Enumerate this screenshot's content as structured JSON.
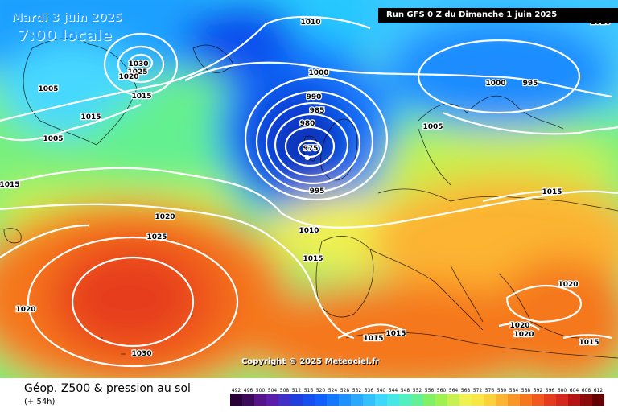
{
  "header": {
    "date": "Mardi 3 juin 2025",
    "time": "7:00 locale",
    "run": "Run GFS 0 Z du Dimanche 1 juin 2025"
  },
  "copyright": "Copyright © 2025 Meteociel.fr",
  "footer": {
    "title": "Géop. Z500 & pression au sol",
    "subtitle": "(+ 54h)"
  },
  "legend": {
    "ticks": [
      "492",
      "496",
      "500",
      "504",
      "508",
      "512",
      "516",
      "520",
      "524",
      "528",
      "532",
      "536",
      "540",
      "544",
      "548",
      "552",
      "556",
      "560",
      "564",
      "568",
      "572",
      "576",
      "580",
      "584",
      "588",
      "592",
      "596",
      "600",
      "604",
      "608",
      "612"
    ],
    "colors": [
      "#2a0038",
      "#3c0a5a",
      "#55148a",
      "#5a1eaa",
      "#4030c8",
      "#2040dd",
      "#1550ee",
      "#1060ff",
      "#1478ff",
      "#1e90ff",
      "#28a8ff",
      "#32c0ff",
      "#3cd8ff",
      "#46e8e6",
      "#50f0c0",
      "#64f096",
      "#82f064",
      "#a0f050",
      "#c8f050",
      "#f0f050",
      "#f8e646",
      "#fcd23c",
      "#fcb432",
      "#fa9628",
      "#f5781e",
      "#f05a1e",
      "#e63c1e",
      "#d2281e",
      "#b41414",
      "#8c0a0a",
      "#640000"
    ]
  },
  "isobar_labels": [
    {
      "text": "1010"
    },
    {
      "text": "1030"
    },
    {
      "text": "1025"
    },
    {
      "text": "1020"
    },
    {
      "text": "1005"
    },
    {
      "text": "1015"
    },
    {
      "text": "1015"
    },
    {
      "text": "1005"
    },
    {
      "text": "1000"
    },
    {
      "text": "990"
    },
    {
      "text": "985"
    },
    {
      "text": "980"
    },
    {
      "text": "975"
    },
    {
      "text": "995"
    },
    {
      "text": "1000"
    },
    {
      "text": "995"
    },
    {
      "text": "1005"
    },
    {
      "text": "1015"
    },
    {
      "text": "1010"
    },
    {
      "text": "1020"
    },
    {
      "text": "1025"
    },
    {
      "text": "1010"
    },
    {
      "text": "1015"
    },
    {
      "text": "1020"
    },
    {
      "text": "1030"
    },
    {
      "text": "1020"
    },
    {
      "text": "1020"
    },
    {
      "text": "1020"
    },
    {
      "text": "1015"
    },
    {
      "text": "1015"
    },
    {
      "text": "1015"
    },
    {
      "text": "1015"
    },
    {
      "text": "1010"
    }
  ]
}
